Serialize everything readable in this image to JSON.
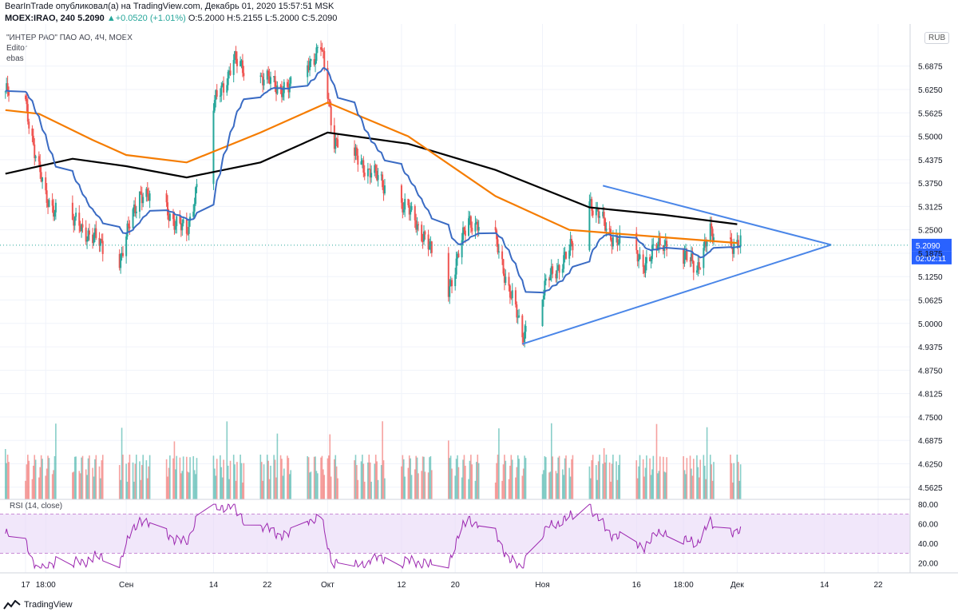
{
  "header": {
    "publish_line": "BearInTrade опубликовал(а) на TradingView.com, Декабрь 01, 2020 15:57:51 MSK",
    "symbol_line": "MOEX:IRAO, 240",
    "last_price": "5.2090",
    "change": "▲+0.0520 (+1.01%)",
    "ohlc_text": "O:5.2000 H:5.2155 L:5.2000 C:5.2090"
  },
  "legend": {
    "title": "\"ИНТЕР РАО\" ПАО АО, 4Ч, MOEX",
    "line2": "Editor",
    "line3": "ebas"
  },
  "price_scale": {
    "currency": "RUB",
    "last_price_label": "5.2090",
    "countdown_label": "02:02:11"
  },
  "rsi": {
    "label": "RSI (14, close)",
    "ticks": [
      "80.00",
      "60.00",
      "40.00",
      "20.00"
    ]
  },
  "x_axis": {
    "ticks": [
      "17",
      "18:00",
      "Сен",
      "14",
      "22",
      "Окт",
      "12",
      "20",
      "Ноя",
      "16",
      "18:00",
      "Дек",
      "14",
      "22"
    ]
  },
  "branding": {
    "logo_text": "TradingView"
  },
  "colors": {
    "up": "#26a69a",
    "down": "#ef5350",
    "ma200": "#000000",
    "ma100": "#f57c00",
    "ema_fast": "#3a6bc4",
    "triangle": "#4a86e8",
    "rsi_line": "#9c27b0",
    "rsi_band": "#e7d7f7"
  },
  "chart_data": {
    "type": "candlestick",
    "symbol": "MOEX:IRAO",
    "interval": "240",
    "ylim": [
      4.53,
      5.8
    ],
    "y_ticks": [
      "5.6875",
      "5.6250",
      "5.5625",
      "5.5000",
      "5.4375",
      "5.3750",
      "5.3125",
      "5.2500",
      "5.1875",
      "5.1250",
      "5.0625",
      "5.0000",
      "4.9375",
      "4.8750",
      "4.8125",
      "4.7500",
      "4.6875",
      "4.6250",
      "4.5625"
    ],
    "anchor_points": [
      {
        "date": "2020-08-14",
        "close": 5.62
      },
      {
        "date": "2020-08-17",
        "close": 5.58
      },
      {
        "date": "2020-08-20",
        "close": 5.33
      },
      {
        "date": "2020-08-25",
        "close": 5.26
      },
      {
        "date": "2020-08-31",
        "close": 5.17
      },
      {
        "date": "2020-09-03",
        "close": 5.35
      },
      {
        "date": "2020-09-07",
        "close": 5.3
      },
      {
        "date": "2020-09-10",
        "close": 5.24
      },
      {
        "date": "2020-09-14",
        "close": 5.58
      },
      {
        "date": "2020-09-17",
        "close": 5.7
      },
      {
        "date": "2020-09-22",
        "close": 5.65
      },
      {
        "date": "2020-09-25",
        "close": 5.62
      },
      {
        "date": "2020-09-30",
        "close": 5.74
      },
      {
        "date": "2020-10-02",
        "close": 5.49
      },
      {
        "date": "2020-10-09",
        "close": 5.38
      },
      {
        "date": "2020-10-14",
        "close": 5.28
      },
      {
        "date": "2020-10-19",
        "close": 5.09
      },
      {
        "date": "2020-10-22",
        "close": 5.28
      },
      {
        "date": "2020-10-26",
        "close": 5.22
      },
      {
        "date": "2020-10-30",
        "close": 4.97
      },
      {
        "date": "2020-11-03",
        "close": 5.12
      },
      {
        "date": "2020-11-06",
        "close": 5.19
      },
      {
        "date": "2020-11-09",
        "close": 5.33
      },
      {
        "date": "2020-11-12",
        "close": 5.24
      },
      {
        "date": "2020-11-17",
        "close": 5.16
      },
      {
        "date": "2020-11-20",
        "close": 5.22
      },
      {
        "date": "2020-11-25",
        "close": 5.15
      },
      {
        "date": "2020-11-27",
        "close": 5.24
      },
      {
        "date": "2020-12-01",
        "close": 5.209
      }
    ],
    "moving_averages": {
      "ma200": [
        {
          "date": "2020-08-14",
          "value": 5.4
        },
        {
          "date": "2020-08-24",
          "value": 5.44
        },
        {
          "date": "2020-09-01",
          "value": 5.42
        },
        {
          "date": "2020-09-10",
          "value": 5.39
        },
        {
          "date": "2020-09-21",
          "value": 5.43
        },
        {
          "date": "2020-10-01",
          "value": 5.51
        },
        {
          "date": "2020-10-13",
          "value": 5.48
        },
        {
          "date": "2020-10-26",
          "value": 5.41
        },
        {
          "date": "2020-11-09",
          "value": 5.31
        },
        {
          "date": "2020-11-20",
          "value": 5.29
        },
        {
          "date": "2020-12-01",
          "value": 5.265
        }
      ],
      "ma100": [
        {
          "date": "2020-08-14",
          "value": 5.57
        },
        {
          "date": "2020-08-19",
          "value": 5.56
        },
        {
          "date": "2020-08-27",
          "value": 5.49
        },
        {
          "date": "2020-09-01",
          "value": 5.45
        },
        {
          "date": "2020-09-10",
          "value": 5.43
        },
        {
          "date": "2020-09-21",
          "value": 5.51
        },
        {
          "date": "2020-10-01",
          "value": 5.59
        },
        {
          "date": "2020-10-13",
          "value": 5.5
        },
        {
          "date": "2020-10-26",
          "value": 5.34
        },
        {
          "date": "2020-11-06",
          "value": 5.25
        },
        {
          "date": "2020-11-20",
          "value": 5.23
        },
        {
          "date": "2020-12-01",
          "value": 5.215
        }
      ]
    },
    "triangle_pattern": {
      "upper": [
        {
          "date": "2020-11-11",
          "price": 5.368
        },
        {
          "date": "2020-12-15",
          "price": 5.21
        }
      ],
      "lower": [
        {
          "date": "2020-10-30",
          "price": 4.945
        },
        {
          "date": "2020-12-15",
          "price": 5.21
        }
      ],
      "apex": {
        "date": "2020-12-15",
        "price": 5.21
      }
    },
    "rsi_levels": {
      "upper": 70,
      "lower": 30
    },
    "rsi_range": [
      10,
      85
    ]
  }
}
